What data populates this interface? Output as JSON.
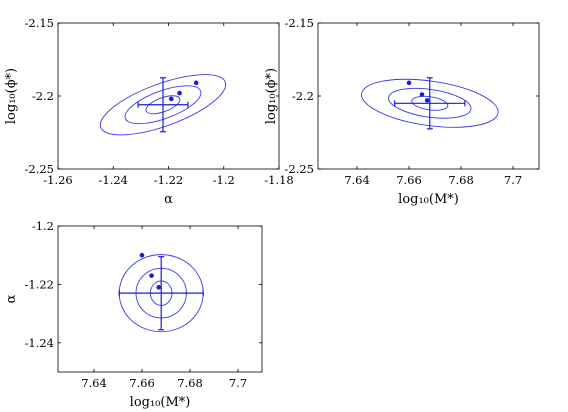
{
  "chart_data": [
    {
      "type": "contour",
      "xlabel": "α",
      "ylabel": "log₁₀(ϕ*)",
      "xlim": [
        -1.26,
        -1.18
      ],
      "ylim": [
        -2.25,
        -2.15
      ],
      "xticks": [
        "-1.26",
        "-1.24",
        "-1.22",
        "-1.2",
        "-1.18"
      ],
      "yticks": [
        "-2.15",
        "-2.2",
        "-2.25"
      ],
      "center": [
        -1.222,
        -2.206
      ],
      "contours": [
        {
          "level": 1,
          "rx": 0.0065,
          "ry": 0.0048
        },
        {
          "level": 2,
          "rx": 0.0145,
          "ry": 0.0095
        },
        {
          "level": 3,
          "rx": 0.024,
          "ry": 0.0145
        }
      ],
      "rotation_deg": 20,
      "errorbar": {
        "x": -1.222,
        "y": -2.206,
        "xerr": 0.009,
        "yerr": 0.0185
      },
      "points": [
        {
          "x": -1.219,
          "y": -2.202
        },
        {
          "x": -1.216,
          "y": -2.198
        },
        {
          "x": -1.21,
          "y": -2.191
        }
      ],
      "grid": false
    },
    {
      "type": "contour",
      "xlabel": "log₁₀(M*)",
      "ylabel": "log₁₀(ϕ*)",
      "xlim": [
        7.625,
        7.71
      ],
      "ylim": [
        -2.25,
        -2.15
      ],
      "xticks": [
        "7.64",
        "7.66",
        "7.68",
        "7.7"
      ],
      "yticks": [
        "-2.15",
        "-2.2",
        "-2.25"
      ],
      "center": [
        7.668,
        -2.205
      ],
      "contours": [
        {
          "level": 1,
          "rx": 0.007,
          "ry": 0.0045
        },
        {
          "level": 2,
          "rx": 0.016,
          "ry": 0.0095
        },
        {
          "level": 3,
          "rx": 0.0265,
          "ry": 0.0152
        }
      ],
      "rotation_deg": -8,
      "errorbar": {
        "x": 7.668,
        "y": -2.205,
        "xerr": 0.0135,
        "yerr": 0.0175
      },
      "points": [
        {
          "x": 7.66,
          "y": -2.191
        },
        {
          "x": 7.665,
          "y": -2.199
        },
        {
          "x": 7.667,
          "y": -2.203
        }
      ],
      "grid": false
    },
    {
      "type": "contour",
      "xlabel": "log₁₀(M*)",
      "ylabel": "α",
      "xlim": [
        7.625,
        7.71
      ],
      "ylim": [
        -1.25,
        -1.2
      ],
      "xticks": [
        "7.64",
        "7.66",
        "7.68",
        "7.7"
      ],
      "yticks": [
        "-1.2",
        "-1.22",
        "-1.24"
      ],
      "center": [
        7.668,
        -1.223
      ],
      "contours": [
        {
          "level": 1,
          "rx": 0.0045,
          "ry": 0.0042
        },
        {
          "level": 2,
          "rx": 0.0105,
          "ry": 0.0085
        },
        {
          "level": 3,
          "rx": 0.0175,
          "ry": 0.0132
        }
      ],
      "rotation_deg": 0,
      "errorbar": {
        "x": 7.668,
        "y": -1.223,
        "xerr": 0.0175,
        "yerr": 0.0125
      },
      "points": [
        {
          "x": 7.66,
          "y": -1.21
        },
        {
          "x": 7.664,
          "y": -1.217
        },
        {
          "x": 7.667,
          "y": -1.221
        }
      ],
      "grid": false
    }
  ]
}
